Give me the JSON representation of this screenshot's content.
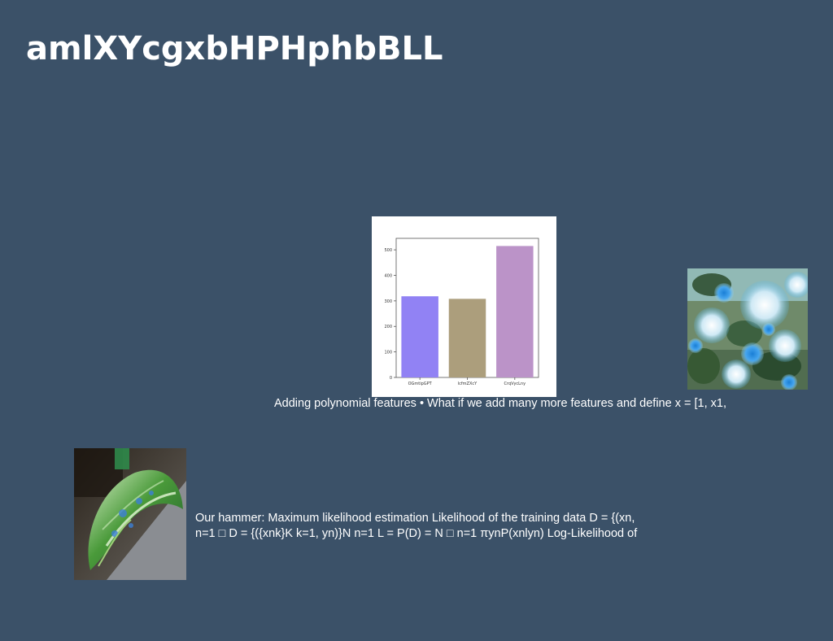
{
  "slide": {
    "title": "amlXYcgxbHPHphbBLL",
    "caption_top": "Adding polynomial features • What if we add many more features and define x = [1, x1,",
    "caption_bottom_line1": "Our hammer: Maximum likelihood estimation Likelihood of the training data D = {(xn,",
    "caption_bottom_line2": "n=1 □ D = {({xnk}K k=1, yn)}N n=1 L = P(D) = N □ n=1 πynP(xnlyn) Log-Likelihood of"
  },
  "chart_data": {
    "type": "bar",
    "categories": [
      "OGmtipGPT",
      "lcfmZXcY",
      "CrqVycLny"
    ],
    "values": [
      318,
      308,
      515
    ],
    "colors": [
      "#9182f4",
      "#ac9e7c",
      "#bb93c8"
    ],
    "yticks": [
      0,
      100,
      200,
      300,
      400,
      500
    ],
    "ylim": [
      0,
      545
    ],
    "title": "",
    "xlabel": "",
    "ylabel": "",
    "grid": false
  },
  "images": {
    "flowers_icon": "flower-photo",
    "leaf_icon": "leaf-photo"
  }
}
